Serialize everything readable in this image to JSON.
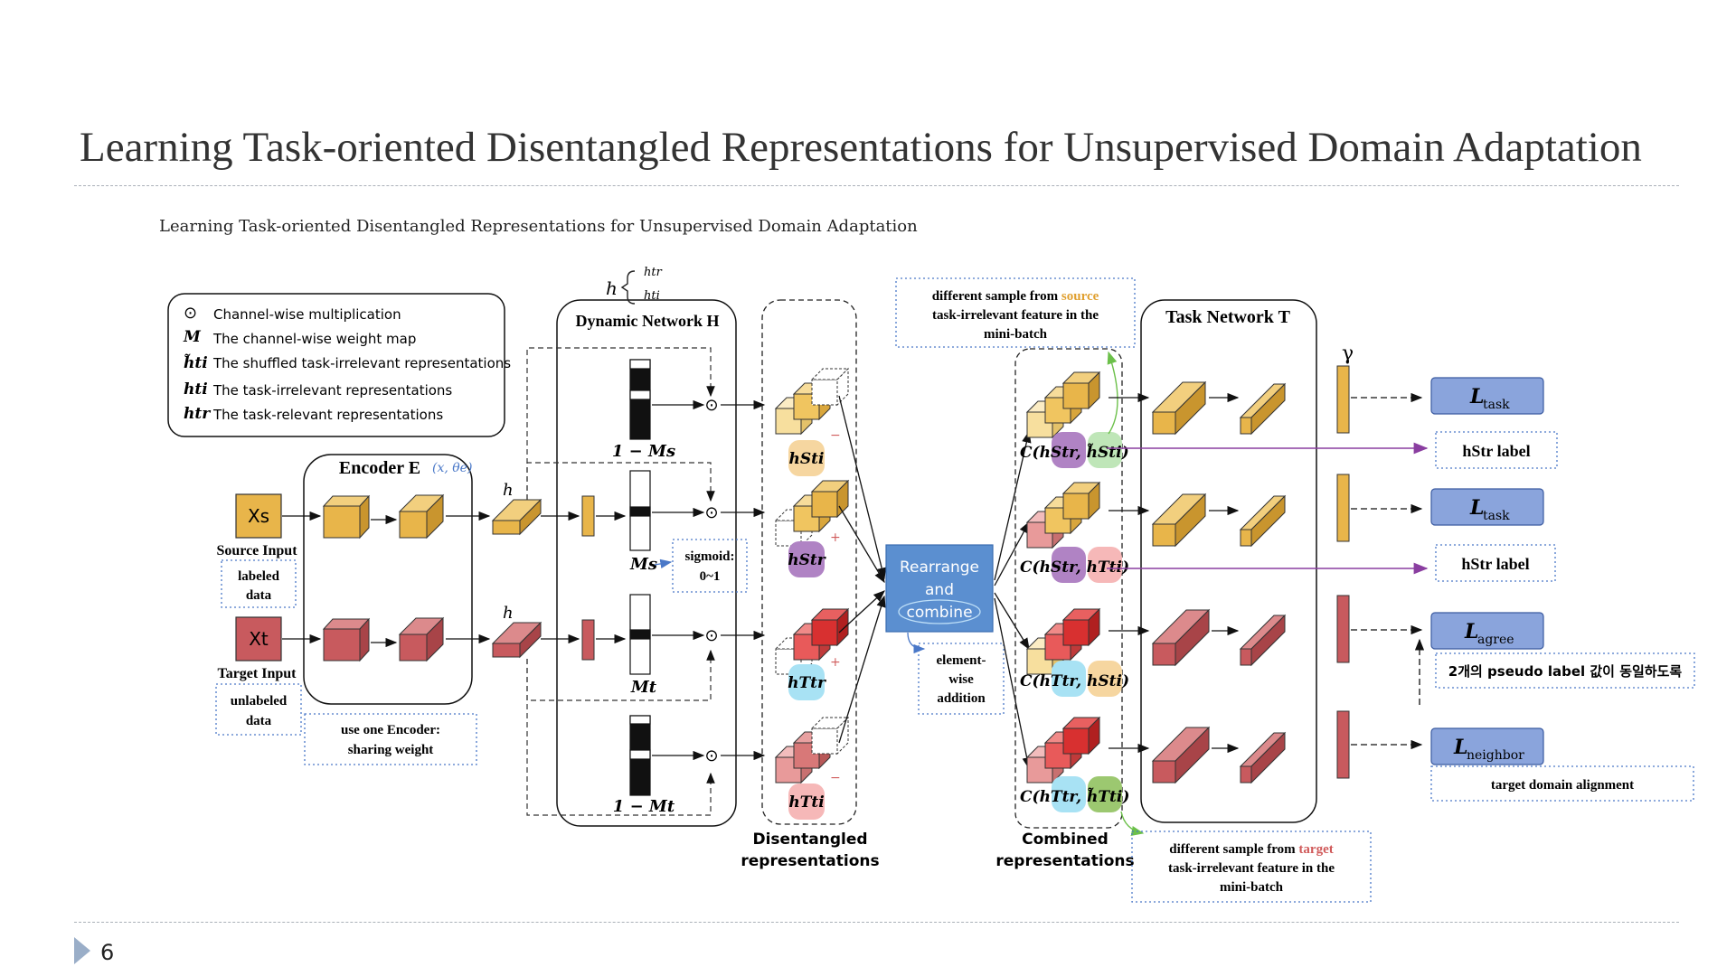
{
  "slide": {
    "title": "Learning Task-oriented Disentangled Representations for Unsupervised Domain Adaptation",
    "subtitle": "Learning Task-oriented Disentangled Representations for Unsupervised Domain Adaptation",
    "page_number": "6"
  },
  "legend": {
    "items": [
      {
        "symbol": "⊙",
        "text": "Channel-wise multiplication"
      },
      {
        "symbol": "M",
        "text": "The channel-wise weight map"
      },
      {
        "symbol": "h̃ti",
        "text": "The shuffled task-irrelevant representations"
      },
      {
        "symbol": "hti",
        "text": "The task-irrelevant representations"
      },
      {
        "symbol": "htr",
        "text": "The task-relevant representations"
      }
    ]
  },
  "inputs": {
    "source_symbol": "Xs",
    "source_label": "Source Input",
    "source_note": [
      "labeled",
      "data"
    ],
    "target_symbol": "Xt",
    "target_label": "Target Input",
    "target_note": [
      "unlabeled",
      "data"
    ]
  },
  "encoder": {
    "title": "Encoder E",
    "annotation": "(x, θe)",
    "note": [
      "use one Encoder:",
      "sharing weight"
    ],
    "h_mark": "h"
  },
  "dynamic": {
    "title": "Dynamic Network H",
    "h_annot": "h",
    "h_annot_a": "htr",
    "h_annot_b": "hti",
    "masks": [
      "1 − Ms",
      "Ms",
      "Mt",
      "1 − Mt"
    ],
    "sigmoid_note": [
      "sigmoid:",
      "0~1"
    ],
    "op": "⊙"
  },
  "disentangled": {
    "caption": [
      "Disentangled",
      "representations"
    ],
    "labels": [
      "hSti",
      "hStr",
      "hTtr",
      "hTti"
    ],
    "signs": [
      "−",
      "+",
      "+",
      "−"
    ]
  },
  "rearrange": {
    "text": [
      "Rearrange",
      "and",
      "combine"
    ],
    "note": [
      "element-",
      "wise",
      "addition"
    ],
    "color": "#5b8fd0"
  },
  "combined": {
    "caption": [
      "Combined",
      "representations"
    ],
    "labels": [
      "C(hStr, h̃Sti)",
      "C(hStr, hTti)",
      "C(hTtr, hSti)",
      "C(hTtr, h̃Tti)"
    ],
    "top_note_parts": [
      "different sample from ",
      "source",
      "task-irrelevant feature in the",
      "mini-batch"
    ],
    "bottom_note_parts": [
      "different sample from ",
      "target",
      "task-irrelevant feature in the",
      "mini-batch"
    ]
  },
  "task": {
    "title": "Task Network T",
    "gamma": "γ"
  },
  "losses": [
    {
      "name": "L",
      "sub": "task"
    },
    {
      "name": "L",
      "sub": "task"
    },
    {
      "name": "L",
      "sub": "agree"
    },
    {
      "name": "L",
      "sub": "neighbor"
    }
  ],
  "outputs": {
    "label1": "hStr label",
    "label2": "hStr label",
    "agree_note": "2개의 pseudo label 값이 동일하도록",
    "neighbor_note": "target domain alignment"
  },
  "colors": {
    "source": "#e8b54a",
    "target": "#c85a5e",
    "loss_box": "#8aa4dc",
    "note_border": "#4a78c8",
    "purple": "#8a3ea0",
    "source_text": "#e0a030",
    "target_text": "#d05a5a"
  }
}
